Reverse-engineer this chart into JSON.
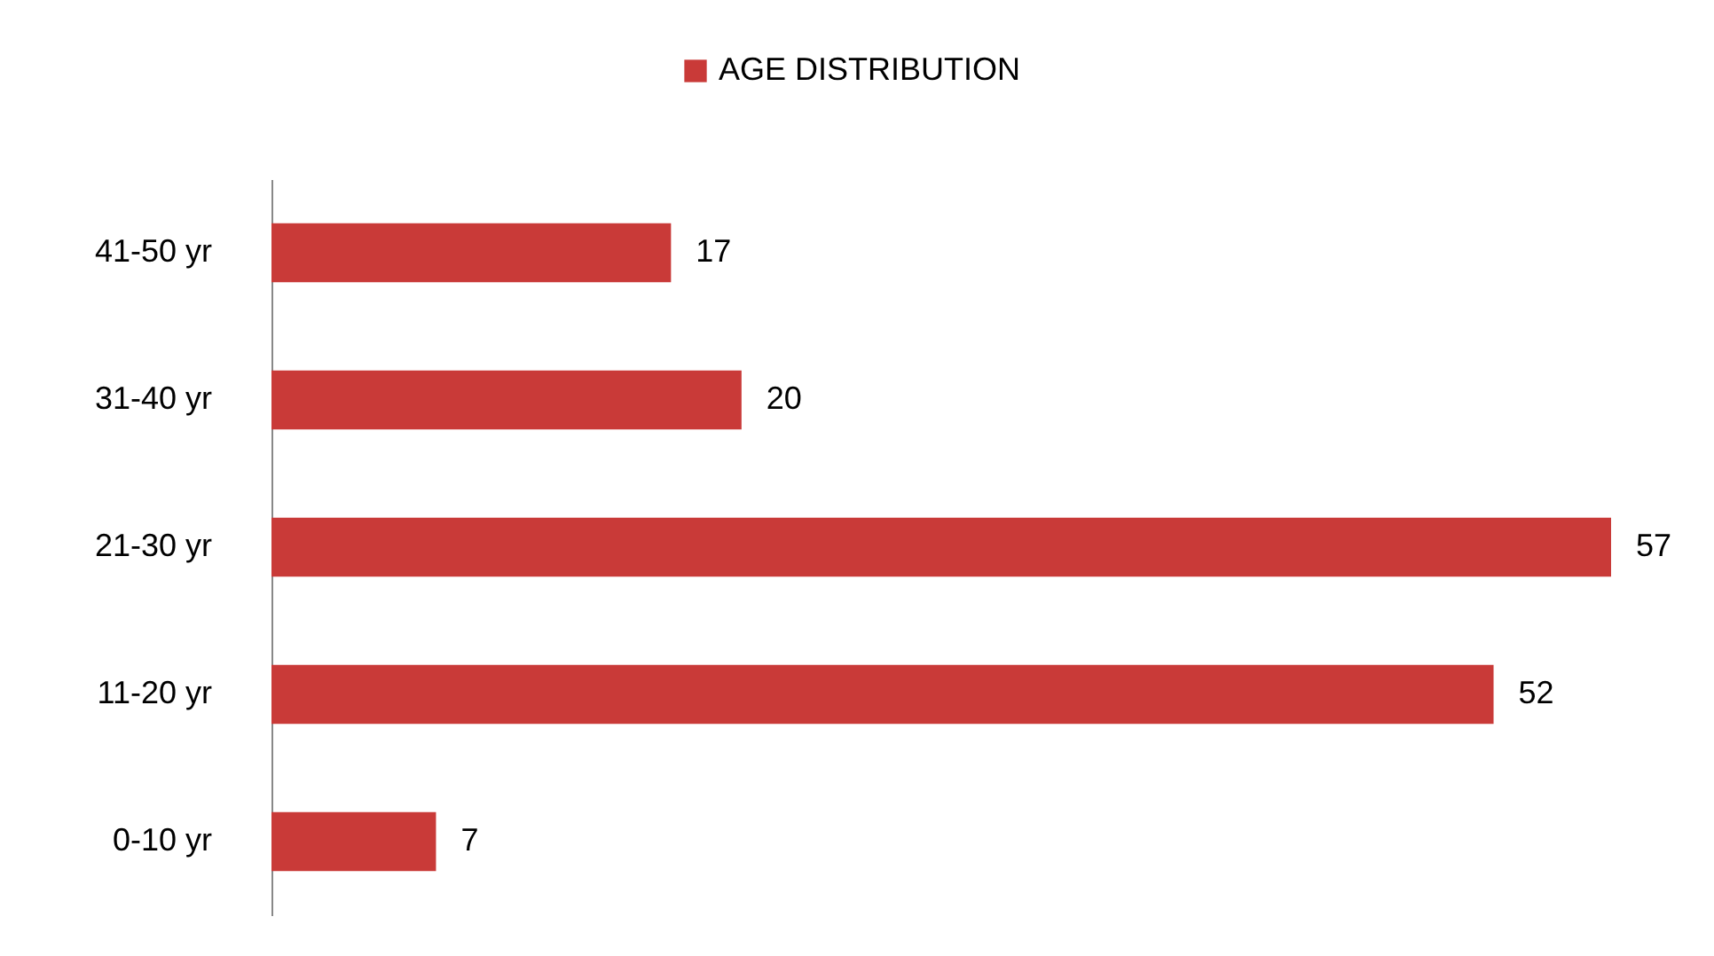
{
  "chart_data": {
    "type": "bar",
    "orientation": "horizontal",
    "categories": [
      "41-50 yr",
      "31-40 yr",
      "21-30 yr",
      "11-20 yr",
      "0-10 yr"
    ],
    "series": [
      {
        "name": "AGE DISTRIBUTION",
        "color": "#c93a38",
        "values": [
          17,
          20,
          57,
          52,
          7
        ]
      }
    ],
    "data_labels": true,
    "legend": "top",
    "tick_labels": "y"
  }
}
